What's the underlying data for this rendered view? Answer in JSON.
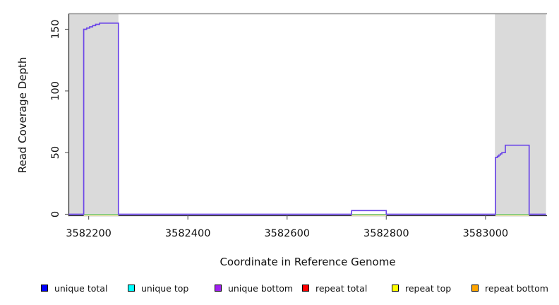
{
  "chart_data": {
    "type": "line",
    "subtype": "step-coverage",
    "title": "",
    "xlabel": "Coordinate in Reference Genome",
    "ylabel": "Read Coverage Depth",
    "xlim": [
      3582160,
      3583124
    ],
    "ylim": [
      0,
      163
    ],
    "x_ticks": [
      3582200,
      3582400,
      3582600,
      3582800,
      3583000
    ],
    "y_ticks": [
      0,
      50,
      100,
      150
    ],
    "grid": false,
    "legend_position": "bottom",
    "shaded_regions": [
      {
        "start": 3582160,
        "end": 3582260
      },
      {
        "start": 3583019,
        "end": 3583122
      }
    ],
    "coverage_segments": [
      [
        3582160,
        3582190,
        0
      ],
      [
        3582190,
        3582196,
        150
      ],
      [
        3582196,
        3582202,
        151
      ],
      [
        3582202,
        3582208,
        152
      ],
      [
        3582208,
        3582214,
        153
      ],
      [
        3582214,
        3582222,
        154
      ],
      [
        3582222,
        3582260,
        155
      ],
      [
        3582260,
        3582730,
        0
      ],
      [
        3582730,
        3582800,
        3
      ],
      [
        3582800,
        3583020,
        0
      ],
      [
        3583020,
        3583024,
        46
      ],
      [
        3583024,
        3583027,
        47
      ],
      [
        3583027,
        3583030,
        48
      ],
      [
        3583030,
        3583033,
        49
      ],
      [
        3583033,
        3583040,
        50
      ],
      [
        3583040,
        3583088,
        56
      ],
      [
        3583088,
        3583122,
        0
      ]
    ],
    "zero_marker_segments": [
      [
        3582190,
        3582260
      ],
      [
        3582730,
        3582800
      ],
      [
        3583020,
        3583088
      ]
    ],
    "legend": [
      {
        "label": "unique total",
        "color": "#0000ff"
      },
      {
        "label": "unique top",
        "color": "#00ffff"
      },
      {
        "label": "unique bottom",
        "color": "#a020f0"
      },
      {
        "label": "repeat total",
        "color": "#ff0000"
      },
      {
        "label": "repeat top",
        "color": "#ffff00"
      },
      {
        "label": "repeat bottom",
        "color": "#ffa500"
      }
    ],
    "colors": {
      "coverage_line": "#6b46e8",
      "shaded_region": "#dadada",
      "top_boundary_line": "#8f8f8f",
      "zero_marker_green": "#7cc87f",
      "zero_marker_cream": "#e9e3a8",
      "axis": "#262626",
      "tick": "#666666"
    }
  }
}
